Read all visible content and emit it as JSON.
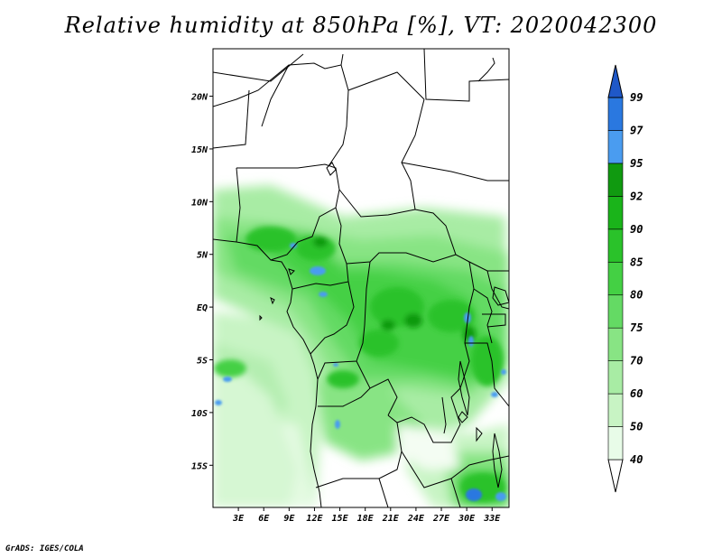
{
  "title": "Relative humidity at 850hPa [%], VT: 2020042300",
  "credit": "GrADS: IGES/COLA",
  "map": {
    "lat_labels": [
      "20N",
      "15N",
      "10N",
      "5N",
      "EQ",
      "5S",
      "10S",
      "15S"
    ],
    "lat_values": [
      20,
      15,
      10,
      5,
      0,
      -5,
      -10,
      -15
    ],
    "lon_labels": [
      "3E",
      "6E",
      "9E",
      "12E",
      "15E",
      "18E",
      "21E",
      "24E",
      "27E",
      "30E",
      "33E"
    ],
    "lon_values": [
      3,
      6,
      9,
      12,
      15,
      18,
      21,
      24,
      27,
      30,
      33
    ],
    "lon_range": [
      0,
      35
    ],
    "lat_range": [
      -19,
      24.5
    ]
  },
  "colorbar": {
    "labels": [
      "40",
      "50",
      "60",
      "70",
      "75",
      "80",
      "85",
      "90",
      "92",
      "95",
      "97",
      "99"
    ],
    "colors": [
      "#e8fce8",
      "#c8f4c4",
      "#a8eca4",
      "#88e484",
      "#64da64",
      "#44d044",
      "#2ac22a",
      "#1ab41a",
      "#109a10",
      "#4a9cf0",
      "#2a78e0",
      "#1f58c8"
    ]
  }
}
